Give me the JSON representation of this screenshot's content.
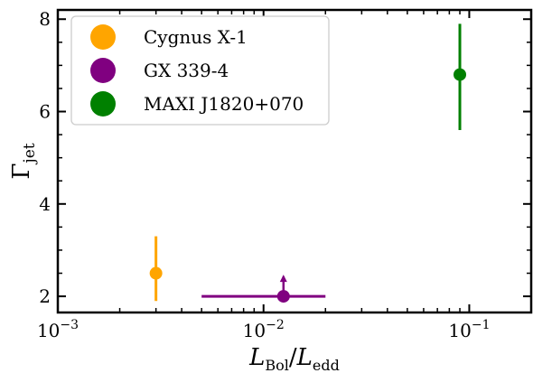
{
  "chart_data": {
    "type": "scatter",
    "x_scale": "log",
    "y_scale": "linear",
    "xlim": [
      0.001,
      0.2
    ],
    "ylim": [
      1.65,
      8.2
    ],
    "xlabel": {
      "main": "L",
      "sub": "Bol",
      "sep": "/",
      "main2": "L",
      "sub2": "edd"
    },
    "ylabel": {
      "main": "Γ",
      "sub": "jet"
    },
    "x_ticks": [
      {
        "value": 0.001,
        "base": "10",
        "exp": "−3"
      },
      {
        "value": 0.01,
        "base": "10",
        "exp": "−2"
      },
      {
        "value": 0.1,
        "base": "10",
        "exp": "−1"
      }
    ],
    "y_ticks": [
      {
        "value": 2,
        "label": "2"
      },
      {
        "value": 4,
        "label": "4"
      },
      {
        "value": 6,
        "label": "6"
      },
      {
        "value": 8,
        "label": "8"
      }
    ],
    "legend": {
      "position": "top-left"
    },
    "series": [
      {
        "name": "Cygnus X-1",
        "color": "#FFA500",
        "points": [
          {
            "x": 0.003,
            "y": 2.5,
            "y_err_low": 1.9,
            "y_err_high": 3.3
          }
        ]
      },
      {
        "name": "GX 339-4",
        "color": "#800080",
        "points": [
          {
            "x": 0.0125,
            "y": 2.0,
            "x_err_low": 0.005,
            "x_err_high": 0.02,
            "lower_limit": true
          }
        ]
      },
      {
        "name": "MAXI J1820+070",
        "color": "#008000",
        "points": [
          {
            "x": 0.09,
            "y": 6.8,
            "y_err_low": 5.6,
            "y_err_high": 7.9
          }
        ]
      }
    ]
  }
}
